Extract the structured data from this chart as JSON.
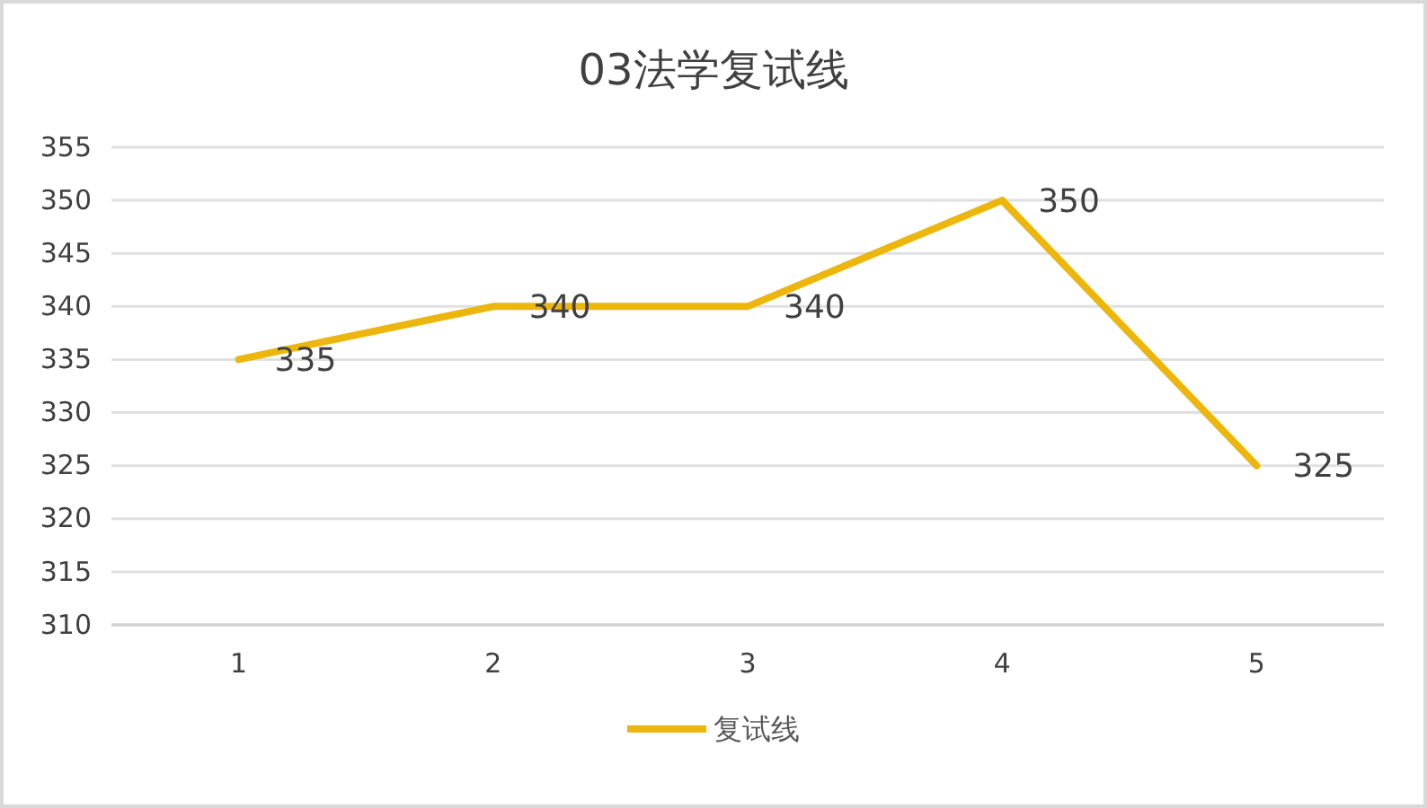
{
  "chart_data": {
    "type": "line",
    "title": "03法学复试线",
    "categories": [
      "1",
      "2",
      "3",
      "4",
      "5"
    ],
    "series": [
      {
        "name": "复试线",
        "color": "#ecb60c",
        "values": [
          335,
          340,
          340,
          350,
          325
        ]
      }
    ],
    "ylim": [
      310,
      355
    ],
    "yticks": [
      310,
      315,
      320,
      325,
      330,
      335,
      340,
      345,
      350,
      355
    ],
    "grid": "y",
    "legend": "bottom",
    "data_labels": true
  }
}
